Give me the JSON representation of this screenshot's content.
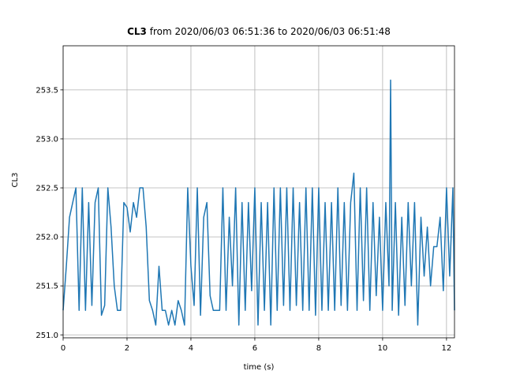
{
  "chart_data": {
    "type": "line",
    "title_bold": "CL3",
    "title": "from 2020/06/03 06:51:36 to 2020/06/03 06:51:48",
    "x_label": "time (s)",
    "y_label": "CL3",
    "grid": true,
    "xlim": [
      0,
      12.25
    ],
    "ylim": [
      250.97,
      253.95
    ],
    "xticks": [
      0,
      2,
      4,
      6,
      8,
      10,
      12
    ],
    "yticks": [
      {
        "value": 251.0,
        "label": "251.0"
      },
      251.5,
      {
        "value": 252.0,
        "label": "252.0"
      },
      252.5,
      {
        "value": 253.0,
        "label": "253.0"
      },
      253.5
    ],
    "x": [
      0,
      0.1,
      0.2,
      0.3,
      0.4,
      0.5,
      0.6,
      0.7,
      0.8,
      0.9,
      1.0,
      1.1,
      1.2,
      1.3,
      1.4,
      1.5,
      1.6,
      1.7,
      1.8,
      1.9,
      2.0,
      2.1,
      2.2,
      2.3,
      2.4,
      2.5,
      2.6,
      2.7,
      2.8,
      2.9,
      3.0,
      3.1,
      3.2,
      3.3,
      3.4,
      3.5,
      3.6,
      3.7,
      3.8,
      3.9,
      4.0,
      4.1,
      4.2,
      4.3,
      4.4,
      4.5,
      4.6,
      4.7,
      4.8,
      4.9,
      5.0,
      5.1,
      5.2,
      5.3,
      5.4,
      5.5,
      5.6,
      5.7,
      5.8,
      5.9,
      6.0,
      6.1,
      6.2,
      6.3,
      6.4,
      6.5,
      6.6,
      6.7,
      6.8,
      6.9,
      7.0,
      7.1,
      7.2,
      7.3,
      7.4,
      7.5,
      7.6,
      7.7,
      7.8,
      7.9,
      8.0,
      8.1,
      8.2,
      8.3,
      8.4,
      8.5,
      8.6,
      8.7,
      8.8,
      8.9,
      9.0,
      9.1,
      9.2,
      9.3,
      9.4,
      9.5,
      9.6,
      9.7,
      9.8,
      9.9,
      10.0,
      10.1,
      10.2,
      10.25,
      10.3,
      10.4,
      10.5,
      10.6,
      10.7,
      10.8,
      10.9,
      11.0,
      11.1,
      11.2,
      11.3,
      11.4,
      11.5,
      11.6,
      11.7,
      11.8,
      11.9,
      12.0,
      12.1,
      12.2,
      12.25
    ],
    "series": [
      {
        "name": "CL3",
        "color": "#1f77b4",
        "values": [
          251.25,
          251.7,
          252.2,
          252.35,
          252.5,
          251.25,
          252.5,
          251.25,
          252.35,
          251.3,
          252.35,
          252.5,
          251.2,
          251.3,
          252.5,
          252.1,
          251.5,
          251.25,
          251.25,
          252.35,
          252.3,
          252.05,
          252.35,
          252.2,
          252.5,
          252.5,
          252.1,
          251.35,
          251.25,
          251.1,
          251.7,
          251.25,
          251.25,
          251.1,
          251.25,
          251.1,
          251.35,
          251.25,
          251.1,
          252.5,
          251.7,
          251.3,
          252.5,
          251.2,
          252.2,
          252.35,
          251.4,
          251.25,
          251.25,
          251.25,
          252.5,
          251.25,
          252.2,
          251.5,
          252.5,
          251.1,
          252.35,
          251.25,
          252.35,
          251.45,
          252.5,
          251.1,
          252.35,
          251.25,
          252.35,
          251.1,
          252.5,
          251.25,
          252.5,
          251.3,
          252.5,
          251.25,
          252.5,
          251.3,
          252.35,
          251.25,
          252.5,
          251.25,
          252.5,
          251.2,
          252.5,
          251.25,
          252.35,
          251.25,
          252.35,
          251.25,
          252.5,
          251.3,
          252.35,
          251.25,
          252.35,
          252.65,
          251.25,
          252.5,
          251.35,
          252.5,
          251.25,
          252.35,
          251.4,
          252.2,
          251.25,
          252.35,
          251.5,
          253.6,
          251.25,
          252.35,
          251.2,
          252.2,
          251.3,
          252.35,
          251.5,
          252.35,
          251.1,
          252.2,
          251.6,
          252.1,
          251.5,
          251.9,
          251.9,
          252.2,
          251.45,
          252.5,
          251.6,
          252.5,
          251.25
        ]
      }
    ]
  }
}
